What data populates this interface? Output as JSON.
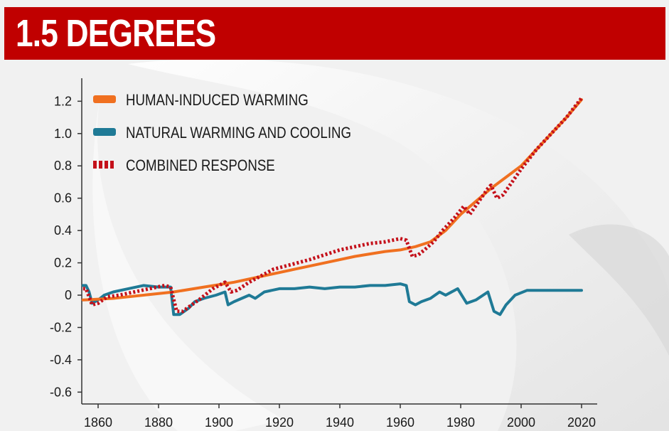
{
  "header": {
    "title": "1.5 DEGREES"
  },
  "colors": {
    "human": "#f07020",
    "natural": "#1f7a96",
    "combined": "#c4101a",
    "title_bar": "#c00000"
  },
  "chart_data": {
    "type": "line",
    "title": "1.5 DEGREES",
    "xlabel": "",
    "ylabel": "",
    "xlim": [
      1855,
      2021
    ],
    "ylim": [
      -0.65,
      1.3
    ],
    "x_ticks": [
      1860,
      1880,
      1900,
      1920,
      1940,
      1960,
      1980,
      2000,
      2020
    ],
    "y_ticks": [
      1.2,
      1.0,
      0.8,
      0.6,
      0.4,
      0.2,
      0,
      -0.2,
      -0.4,
      -0.6
    ],
    "y_tick_labels": [
      "1.2",
      "1.0",
      "0.8",
      "0.6",
      "0.4",
      "0.2",
      "0",
      "-0.2",
      "-0.4",
      "-0.6"
    ],
    "grid": false,
    "legend_position": "top-left",
    "series": [
      {
        "name": "HUMAN-INDUCED WARMING",
        "style": "solid",
        "color": "#f07020",
        "points": [
          [
            1855,
            -0.03
          ],
          [
            1865,
            -0.02
          ],
          [
            1875,
            0.0
          ],
          [
            1885,
            0.02
          ],
          [
            1895,
            0.05
          ],
          [
            1905,
            0.08
          ],
          [
            1915,
            0.12
          ],
          [
            1925,
            0.16
          ],
          [
            1935,
            0.2
          ],
          [
            1945,
            0.24
          ],
          [
            1955,
            0.27
          ],
          [
            1960,
            0.28
          ],
          [
            1965,
            0.3
          ],
          [
            1970,
            0.33
          ],
          [
            1975,
            0.4
          ],
          [
            1980,
            0.5
          ],
          [
            1985,
            0.58
          ],
          [
            1990,
            0.66
          ],
          [
            1995,
            0.73
          ],
          [
            2000,
            0.8
          ],
          [
            2005,
            0.9
          ],
          [
            2010,
            1.0
          ],
          [
            2015,
            1.1
          ],
          [
            2020,
            1.21
          ]
        ]
      },
      {
        "name": "NATURAL WARMING AND COOLING",
        "style": "solid",
        "color": "#1f7a96",
        "points": [
          [
            1855,
            0.06
          ],
          [
            1856,
            0.06
          ],
          [
            1857,
            0.02
          ],
          [
            1858,
            -0.05
          ],
          [
            1860,
            -0.03
          ],
          [
            1862,
            0.0
          ],
          [
            1865,
            0.02
          ],
          [
            1870,
            0.04
          ],
          [
            1875,
            0.06
          ],
          [
            1880,
            0.05
          ],
          [
            1884,
            0.05
          ],
          [
            1885,
            -0.12
          ],
          [
            1887,
            -0.12
          ],
          [
            1890,
            -0.08
          ],
          [
            1892,
            -0.04
          ],
          [
            1895,
            -0.02
          ],
          [
            1899,
            0.0
          ],
          [
            1902,
            0.02
          ],
          [
            1903,
            -0.06
          ],
          [
            1905,
            -0.04
          ],
          [
            1910,
            0.0
          ],
          [
            1912,
            -0.02
          ],
          [
            1915,
            0.02
          ],
          [
            1920,
            0.04
          ],
          [
            1925,
            0.04
          ],
          [
            1930,
            0.05
          ],
          [
            1935,
            0.04
          ],
          [
            1940,
            0.05
          ],
          [
            1945,
            0.05
          ],
          [
            1950,
            0.06
          ],
          [
            1955,
            0.06
          ],
          [
            1960,
            0.07
          ],
          [
            1962,
            0.06
          ],
          [
            1963,
            -0.04
          ],
          [
            1965,
            -0.06
          ],
          [
            1967,
            -0.04
          ],
          [
            1970,
            -0.02
          ],
          [
            1973,
            0.02
          ],
          [
            1975,
            0.0
          ],
          [
            1979,
            0.04
          ],
          [
            1982,
            -0.05
          ],
          [
            1985,
            -0.03
          ],
          [
            1989,
            0.02
          ],
          [
            1991,
            -0.1
          ],
          [
            1993,
            -0.12
          ],
          [
            1995,
            -0.06
          ],
          [
            1998,
            0.0
          ],
          [
            2002,
            0.03
          ],
          [
            2005,
            0.03
          ],
          [
            2010,
            0.03
          ],
          [
            2015,
            0.03
          ],
          [
            2020,
            0.03
          ]
        ]
      },
      {
        "name": "COMBINED RESPONSE",
        "style": "dotted",
        "color": "#c4101a",
        "points": [
          [
            1855,
            0.04
          ],
          [
            1856,
            0.04
          ],
          [
            1858,
            -0.06
          ],
          [
            1860,
            -0.05
          ],
          [
            1863,
            -0.01
          ],
          [
            1867,
            0.0
          ],
          [
            1872,
            0.02
          ],
          [
            1877,
            0.04
          ],
          [
            1882,
            0.06
          ],
          [
            1884,
            0.05
          ],
          [
            1886,
            -0.1
          ],
          [
            1888,
            -0.1
          ],
          [
            1891,
            -0.06
          ],
          [
            1894,
            -0.02
          ],
          [
            1898,
            0.04
          ],
          [
            1902,
            0.08
          ],
          [
            1904,
            0.02
          ],
          [
            1906,
            0.03
          ],
          [
            1910,
            0.08
          ],
          [
            1914,
            0.12
          ],
          [
            1918,
            0.16
          ],
          [
            1922,
            0.18
          ],
          [
            1926,
            0.2
          ],
          [
            1930,
            0.22
          ],
          [
            1935,
            0.25
          ],
          [
            1940,
            0.28
          ],
          [
            1945,
            0.3
          ],
          [
            1950,
            0.32
          ],
          [
            1955,
            0.33
          ],
          [
            1960,
            0.35
          ],
          [
            1962,
            0.34
          ],
          [
            1964,
            0.24
          ],
          [
            1966,
            0.25
          ],
          [
            1968,
            0.28
          ],
          [
            1971,
            0.33
          ],
          [
            1974,
            0.4
          ],
          [
            1978,
            0.48
          ],
          [
            1981,
            0.55
          ],
          [
            1983,
            0.5
          ],
          [
            1986,
            0.58
          ],
          [
            1989,
            0.66
          ],
          [
            1990,
            0.68
          ],
          [
            1992,
            0.6
          ],
          [
            1994,
            0.62
          ],
          [
            1997,
            0.7
          ],
          [
            2000,
            0.78
          ],
          [
            2005,
            0.9
          ],
          [
            2010,
            1.0
          ],
          [
            2015,
            1.1
          ],
          [
            2020,
            1.22
          ]
        ]
      }
    ]
  }
}
